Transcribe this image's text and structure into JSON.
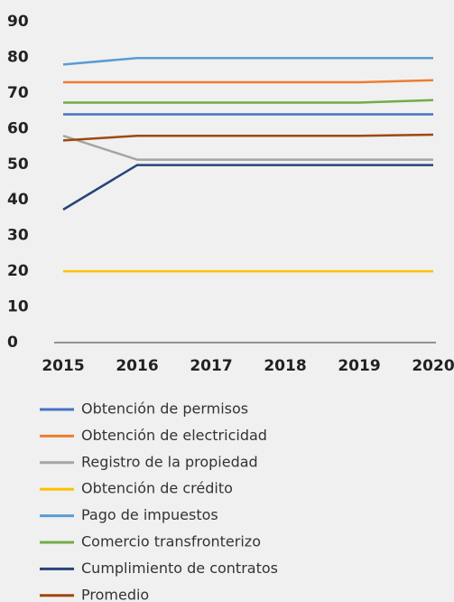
{
  "chart_data": {
    "type": "line",
    "x": [
      2015,
      2016,
      2017,
      2018,
      2019,
      2020
    ],
    "xlim": [
      2015,
      2020
    ],
    "xticks": [
      2015,
      2016,
      2017,
      2018,
      2019,
      2020
    ],
    "ylim": [
      0,
      90
    ],
    "yticks": [
      0,
      10,
      20,
      30,
      40,
      50,
      60,
      70,
      80,
      90
    ],
    "grid": false,
    "series": [
      {
        "name": "Obtención de permisos",
        "color": "#4472c4",
        "values": [
          64,
          64,
          64,
          64,
          64,
          64
        ]
      },
      {
        "name": "Obtención de electricidad",
        "color": "#ed7d31",
        "values": [
          73,
          73,
          73,
          73,
          73,
          73.6
        ]
      },
      {
        "name": "Registro de la propiedad",
        "color": "#a5a5a5",
        "values": [
          58,
          51.3,
          51.3,
          51.3,
          51.3,
          51.3
        ]
      },
      {
        "name": "Obtención de crédito",
        "color": "#ffc000",
        "values": [
          20,
          20,
          20,
          20,
          20,
          20
        ]
      },
      {
        "name": "Pago de impuestos",
        "color": "#5b9bd5",
        "values": [
          78,
          79.8,
          79.8,
          79.8,
          79.8,
          79.8
        ]
      },
      {
        "name": "Comercio transfronterizo",
        "color": "#70ad47",
        "values": [
          67.3,
          67.3,
          67.3,
          67.3,
          67.3,
          68
        ]
      },
      {
        "name": "Cumplimiento de contratos",
        "color": "#264478",
        "values": [
          37.3,
          49.8,
          49.8,
          49.8,
          49.8,
          49.8
        ]
      },
      {
        "name": "Promedio",
        "color": "#9e480e",
        "values": [
          56.7,
          58,
          58,
          58,
          58,
          58.3
        ]
      }
    ]
  }
}
